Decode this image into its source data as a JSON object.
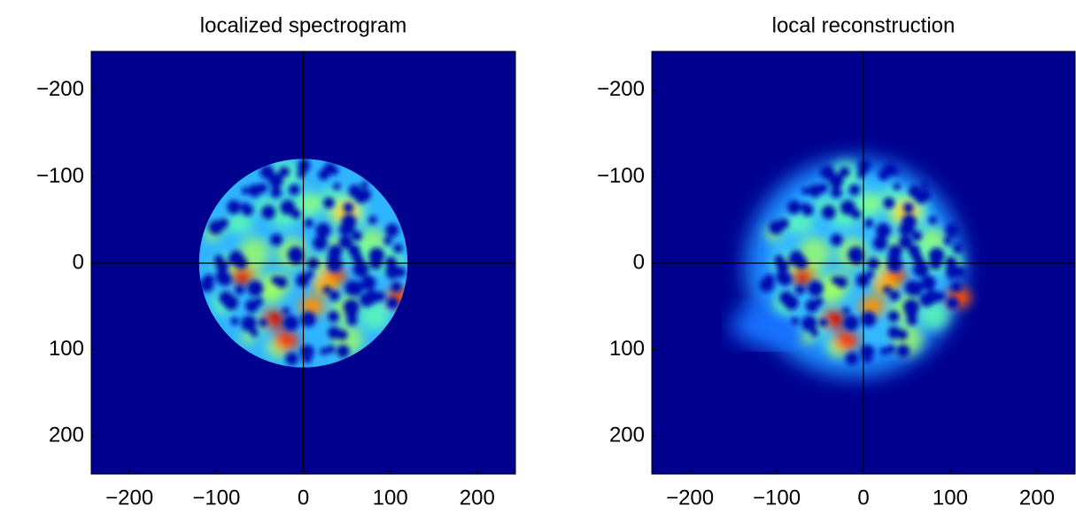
{
  "chart_data": [
    {
      "type": "heatmap",
      "title": "localized spectrogram",
      "background": "#00008f",
      "xlim": [
        -244,
        244
      ],
      "ylim": [
        -245,
        244
      ],
      "y_reversed": true,
      "xticks": [
        {
          "value": -200,
          "label": "−200"
        },
        {
          "value": -100,
          "label": "−100"
        },
        0,
        100,
        200
      ],
      "yticks": [
        {
          "value": -200,
          "label": "−200"
        },
        {
          "value": -100,
          "label": "−100"
        },
        0,
        100,
        200
      ]
    },
    {
      "type": "heatmap",
      "title": "local reconstruction",
      "background": "#00008f",
      "xlim": [
        -244,
        244
      ],
      "ylim": [
        -245,
        244
      ],
      "y_reversed": true,
      "xticks": [
        {
          "value": -200,
          "label": "−200"
        },
        {
          "value": -100,
          "label": "−100"
        },
        0,
        100,
        200
      ],
      "yticks": [
        {
          "value": -200,
          "label": "−200"
        },
        {
          "value": -100,
          "label": "−100"
        },
        0,
        100,
        200
      ]
    }
  ]
}
